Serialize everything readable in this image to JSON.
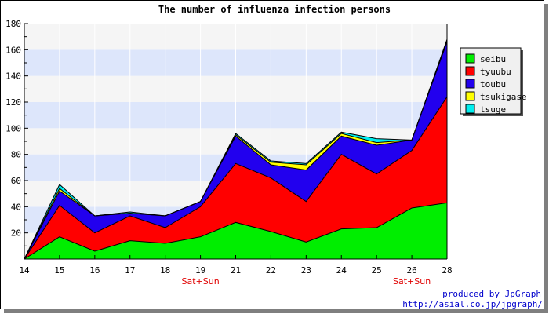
{
  "chart_data": {
    "type": "area",
    "stacked": true,
    "title": "The number of influenza infection persons",
    "xlabel": "",
    "ylabel": "",
    "x": [
      "14",
      "15",
      "16",
      "17",
      "18",
      "19",
      "21",
      "22",
      "23",
      "24",
      "25",
      "26",
      "28"
    ],
    "x_sublabels": {
      "19": "Sat+Sun",
      "26": "Sat+Sun"
    },
    "ylim": [
      0,
      180
    ],
    "yticks": [
      20,
      40,
      60,
      80,
      100,
      120,
      140,
      160,
      180
    ],
    "grid": "alternating horizontal bands",
    "legend_position": "right",
    "series": [
      {
        "name": "seibu",
        "color": "#00ee00",
        "values": [
          0,
          17,
          6,
          14,
          12,
          17,
          28,
          21,
          13,
          23,
          24,
          39,
          43
        ]
      },
      {
        "name": "tyuubu",
        "color": "#ff0000",
        "values": [
          0,
          24,
          14,
          19,
          12,
          23,
          45,
          41,
          31,
          57,
          41,
          44,
          81
        ]
      },
      {
        "name": "toubu",
        "color": "#2200ee",
        "values": [
          0,
          11,
          13,
          2,
          9,
          4,
          21,
          10,
          24,
          14,
          22,
          8,
          42
        ]
      },
      {
        "name": "tsukigase",
        "color": "#ffff00",
        "values": [
          0,
          2,
          0,
          0,
          0,
          0,
          1,
          2,
          4,
          2,
          2,
          0,
          1
        ]
      },
      {
        "name": "tsuge",
        "color": "#00eeee",
        "values": [
          0,
          3,
          0,
          1,
          0,
          0,
          1,
          1,
          1,
          1,
          3,
          0,
          1
        ]
      }
    ]
  },
  "credit": {
    "line1": "produced by JpGraph",
    "line2": "http://asial.co.jp/jpgraph/"
  }
}
